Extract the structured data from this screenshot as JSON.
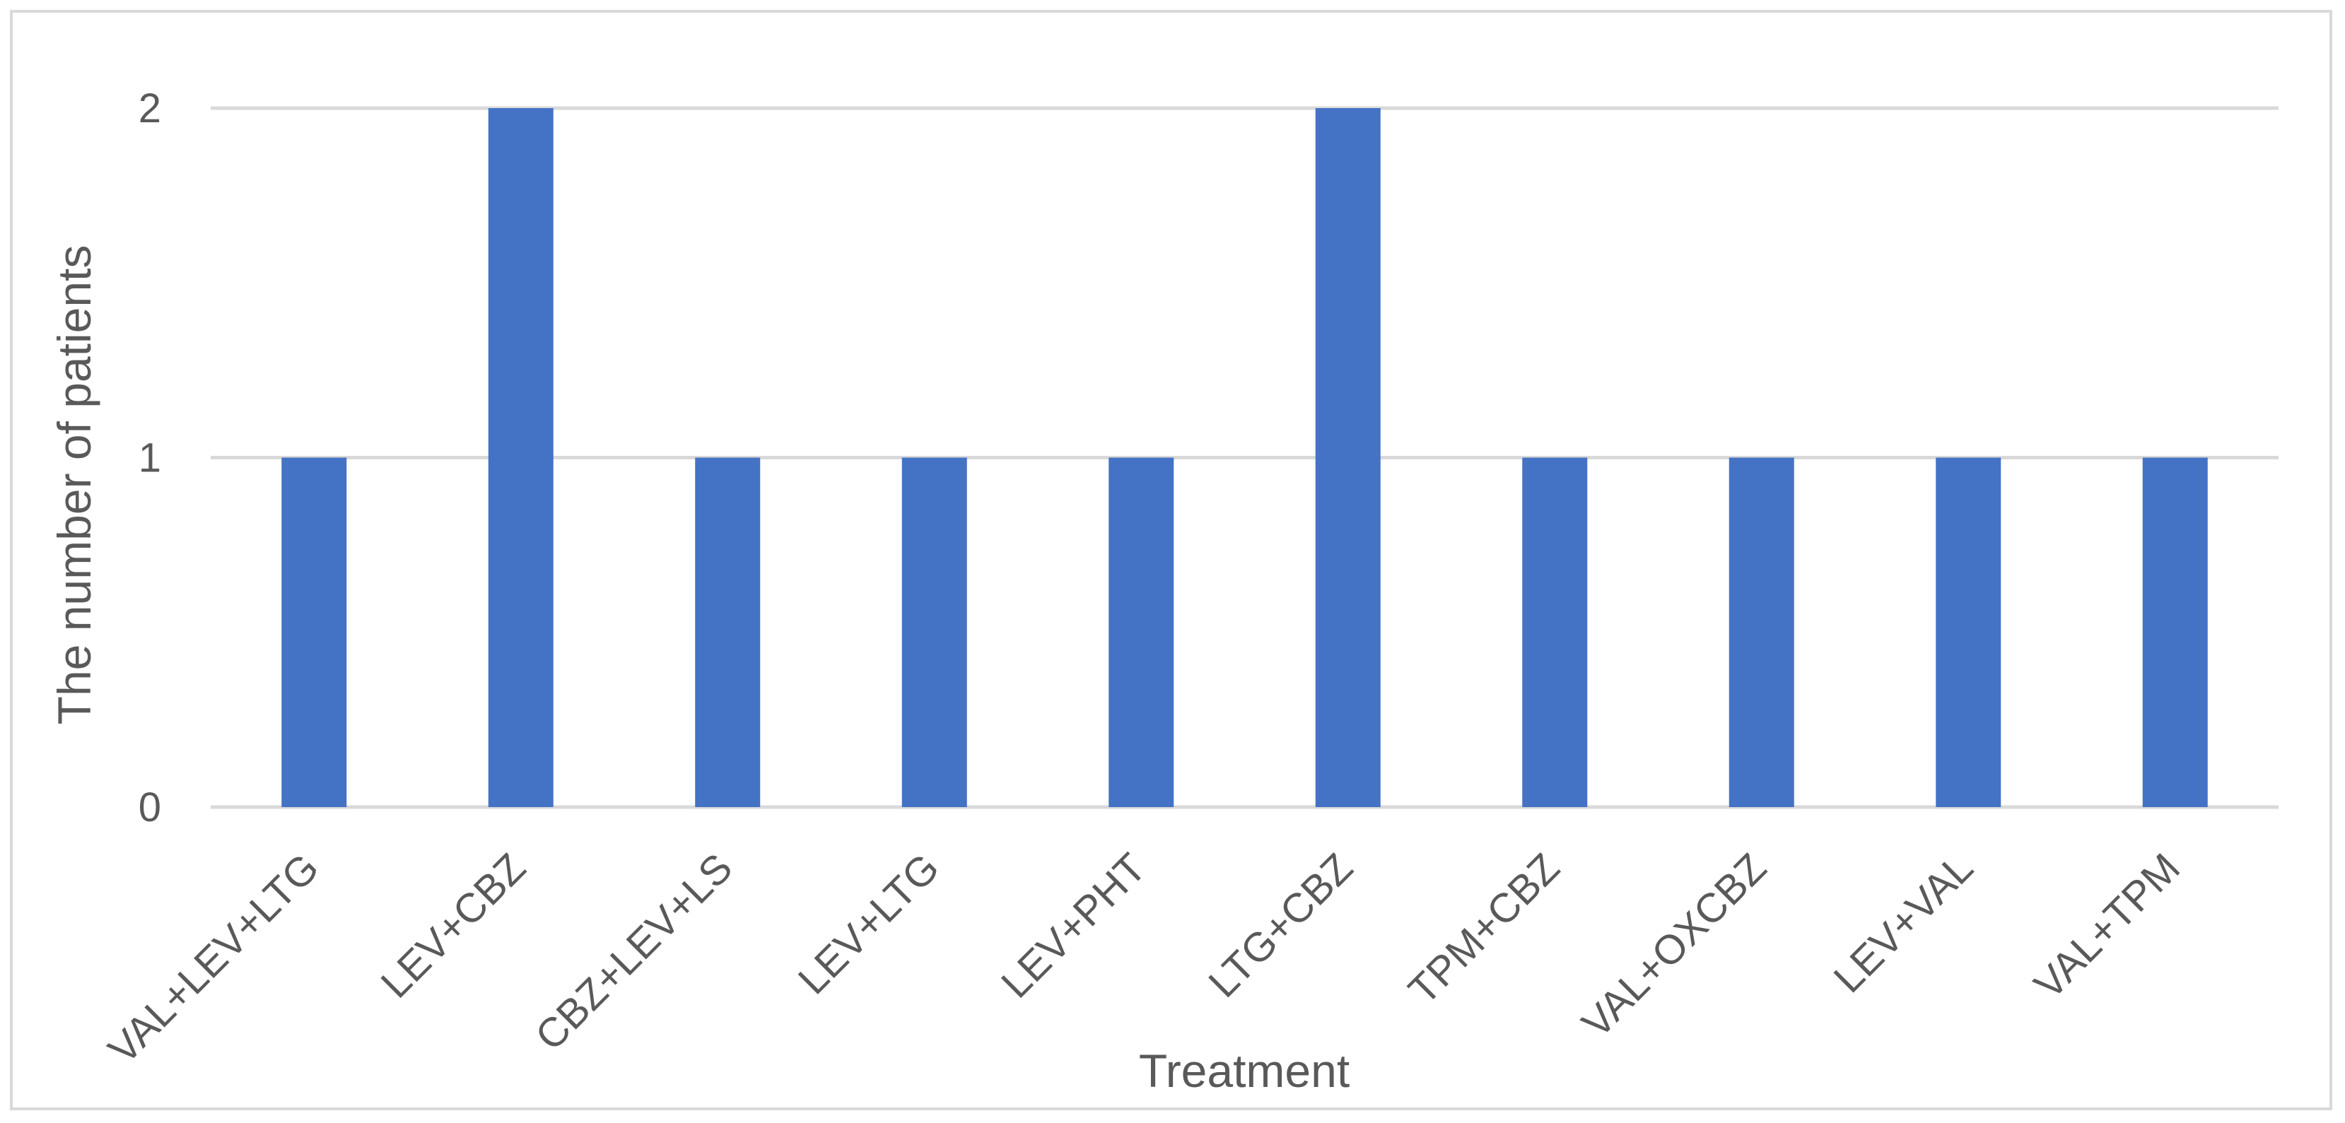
{
  "chart_data": {
    "type": "bar",
    "title": "",
    "xlabel": "Treatment",
    "ylabel": "The number of patients",
    "categories": [
      "VAL+LEV+LTG",
      "LEV+CBZ",
      "CBZ+LEV+LS",
      "LEV+LTG",
      "LEV+PHT",
      "LTG+CBZ",
      "TPM+CBZ",
      "VAL+OXCBZ",
      "LEV+VAL",
      "VAL+TPM"
    ],
    "values": [
      1,
      2,
      1,
      1,
      1,
      2,
      1,
      1,
      1,
      1
    ],
    "ylim": [
      0,
      2
    ],
    "yticks": [
      0,
      1,
      2
    ],
    "grid": true,
    "legend": "none",
    "colors": {
      "bar": "#4472c4",
      "grid": "#d9d9d9",
      "text": "#595959"
    }
  }
}
